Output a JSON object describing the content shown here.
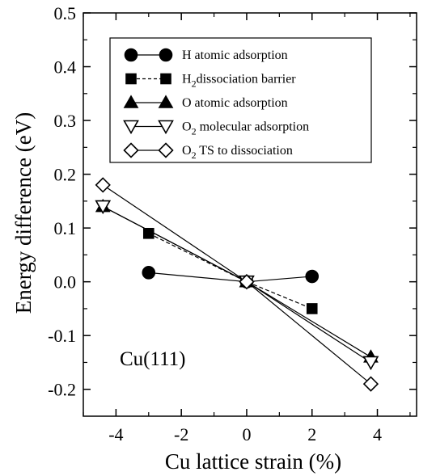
{
  "chart_data": {
    "type": "line",
    "xlabel": "Cu lattice strain (%)",
    "ylabel": "Energy  difference (eV)",
    "xlim": [
      -5.0,
      5.2
    ],
    "ylim": [
      -0.25,
      0.5
    ],
    "xticks": [
      -4,
      -2,
      0,
      2,
      4
    ],
    "xtick_labels": [
      "-4",
      "-2",
      "0",
      "2",
      "4"
    ],
    "yticks": [
      -0.2,
      -0.1,
      0.0,
      0.1,
      0.2,
      0.3,
      0.4,
      0.5
    ],
    "ytick_labels": [
      "-0.2",
      "-0.1",
      "0.0",
      "0.1",
      "0.2",
      "0.3",
      "0.4",
      "0.5"
    ],
    "annotation": "Cu(111)",
    "grid": false,
    "legend_position": "top-right",
    "series": [
      {
        "name": "H atomic adsorption",
        "marker": "filled-circle",
        "line": "solid",
        "x": [
          -3.0,
          0.0,
          2.0
        ],
        "y": [
          0.017,
          0.0,
          0.01
        ]
      },
      {
        "name": "H2 dissociation barrier",
        "name_main": "H",
        "name_sub": "2",
        "name_rest": "dissociation barrier",
        "marker": "filled-square",
        "line": "dashed",
        "x": [
          -3.0,
          0.0,
          2.0
        ],
        "y": [
          0.09,
          0.0,
          -0.05
        ]
      },
      {
        "name": "O atomic adsorption",
        "marker": "filled-triangle-up",
        "line": "solid",
        "x": [
          -4.4,
          0.0,
          3.8
        ],
        "y": [
          0.14,
          0.0,
          -0.14
        ]
      },
      {
        "name": "O2 molecular adsorption",
        "name_main": "O",
        "name_sub": "2",
        "name_rest": " molecular adsorption",
        "marker": "open-triangle-down",
        "line": "solid",
        "x": [
          -4.4,
          0.0,
          3.8
        ],
        "y": [
          0.14,
          0.0,
          -0.15
        ]
      },
      {
        "name": "O2 TS to dissociation",
        "name_main": "O",
        "name_sub": "2",
        "name_rest": " TS to dissociation",
        "marker": "open-diamond",
        "line": "solid",
        "x": [
          -4.4,
          0.0,
          3.8
        ],
        "y": [
          0.18,
          0.0,
          -0.19
        ]
      }
    ]
  }
}
